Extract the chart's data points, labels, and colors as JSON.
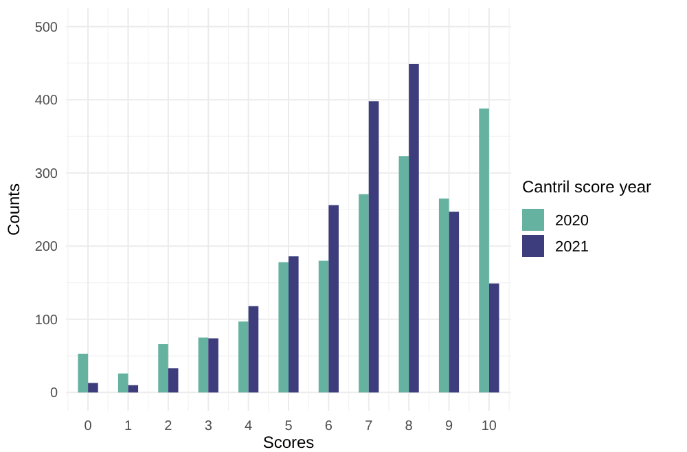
{
  "chart_data": {
    "type": "bar",
    "xlabel": "Scores",
    "ylabel": "Counts",
    "legend_title": "Cantril score year",
    "categories": [
      "0",
      "1",
      "2",
      "3",
      "4",
      "5",
      "6",
      "7",
      "8",
      "9",
      "10"
    ],
    "series": [
      {
        "name": "2020",
        "color": "#66b2a0",
        "values": [
          53,
          26,
          66,
          75,
          97,
          178,
          180,
          271,
          323,
          265,
          388
        ]
      },
      {
        "name": "2021",
        "color": "#3d3d7d",
        "values": [
          13,
          10,
          33,
          74,
          118,
          186,
          256,
          398,
          449,
          247,
          149
        ]
      }
    ],
    "ylim": [
      -25,
      525
    ],
    "yticks": [
      0,
      100,
      200,
      300,
      400,
      500
    ],
    "grid": true,
    "legend": "right"
  }
}
